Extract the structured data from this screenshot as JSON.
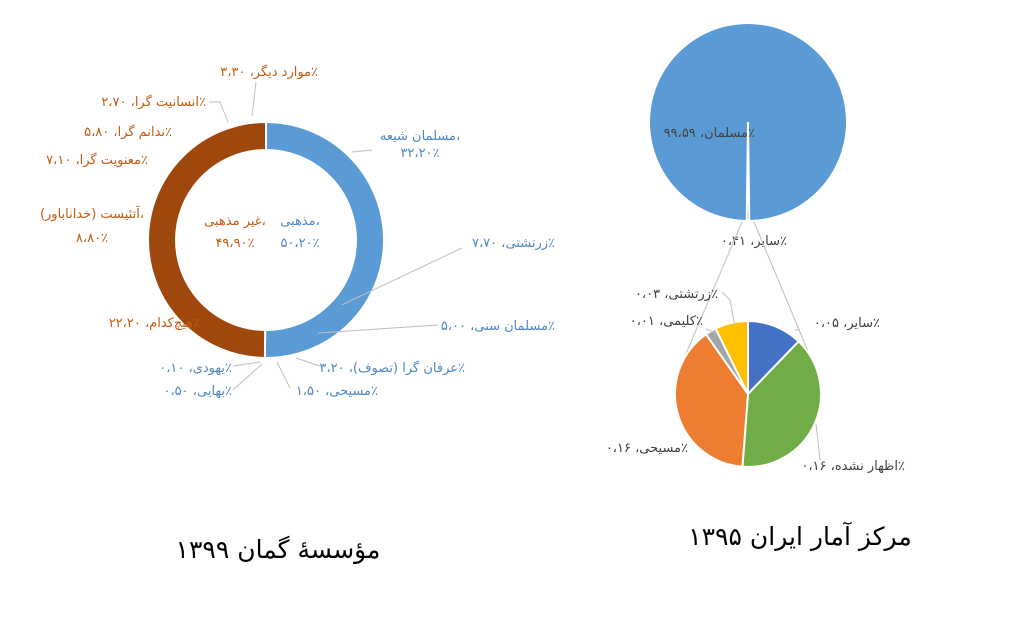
{
  "captions": {
    "left": "مؤسسهٔ گمان ۱۳۹۹",
    "right": "مرکز آمار ایران ۱۳۹۵"
  },
  "chart_data": [
    {
      "type": "pie",
      "variant": "nested-donut",
      "source": "مؤسسهٔ گمان ۱۳۹۹",
      "inner_ring": [
        {
          "label": "مذهبی، ۵۰،۲۰٪",
          "value": 50.2,
          "color": "#5b9bd5"
        },
        {
          "label": "غیر مذهبی، ۴۹،۹۰٪",
          "value": 49.9,
          "color": "#9e480e"
        }
      ],
      "outer_ring": [
        {
          "label": "مسلمان شیعه، ۳۲،۲۰٪",
          "value": 32.2,
          "color": "#5b9bd5"
        },
        {
          "label": "زرتشتی، ۷،۷۰٪",
          "value": 7.7,
          "color": "#2e75b6"
        },
        {
          "label": "مسلمان سنی، ۵،۰۰٪",
          "value": 5.0,
          "color": "#9dc3e6"
        },
        {
          "label": "عرفان گرا (تصوف)، ۳،۲۰٪",
          "value": 3.2,
          "color": "#bdd7ee"
        },
        {
          "label": "مسیحی، ۱،۵۰٪",
          "value": 1.5,
          "color": "#deebf7"
        },
        {
          "label": "بهایی، ۰،۵۰٪",
          "value": 0.5,
          "color": "#a9d18e"
        },
        {
          "label": "یهودی، ۰،۱۰٪",
          "value": 0.1,
          "color": "#70ad47"
        },
        {
          "label": "هیچ‌کدام، ۲۲،۲۰٪",
          "value": 22.2,
          "color": "#9e480e"
        },
        {
          "label": "آتئیست (خداناباور)، ۸،۸۰٪",
          "value": 8.8,
          "color": "#fbe5d6"
        },
        {
          "label": "معنویت گرا، ۷،۱۰٪",
          "value": 7.1,
          "color": "#f8cbad"
        },
        {
          "label": "ندانم گرا، ۵،۸۰٪",
          "value": 5.8,
          "color": "#f4b183"
        },
        {
          "label": "انسانیت گرا، ۲،۷۰٪",
          "value": 2.7,
          "color": "#c55a11"
        },
        {
          "label": "موارد دیگر، ۳،۳۰٪",
          "value": 3.3,
          "color": "#843c0c"
        }
      ]
    },
    {
      "type": "pie",
      "variant": "pie-of-pie",
      "source": "مرکز آمار ایران ۱۳۹۵",
      "main": [
        {
          "label": "مسلمان، ۹۹،۵۹٪",
          "value": 99.59,
          "color": "#5b9bd5"
        },
        {
          "label": "سایر، ۰،۴۱٪",
          "value": 0.41,
          "color": "#5b9bd5"
        }
      ],
      "secondary": [
        {
          "label": "سایر، ۰،۰۵٪",
          "value": 0.05,
          "color": "#4472c4"
        },
        {
          "label": "اظهار نشده، ۰،۱۶٪",
          "value": 0.16,
          "color": "#70ad47"
        },
        {
          "label": "مسیحی، ۰،۱۶٪",
          "value": 0.16,
          "color": "#ed7d31"
        },
        {
          "label": "کلیمی، ۰،۰۱٪",
          "value": 0.01,
          "color": "#a5a5a5"
        },
        {
          "label": "زرتشتی، ۰،۰۳٪",
          "value": 0.03,
          "color": "#ffc000"
        }
      ]
    }
  ]
}
